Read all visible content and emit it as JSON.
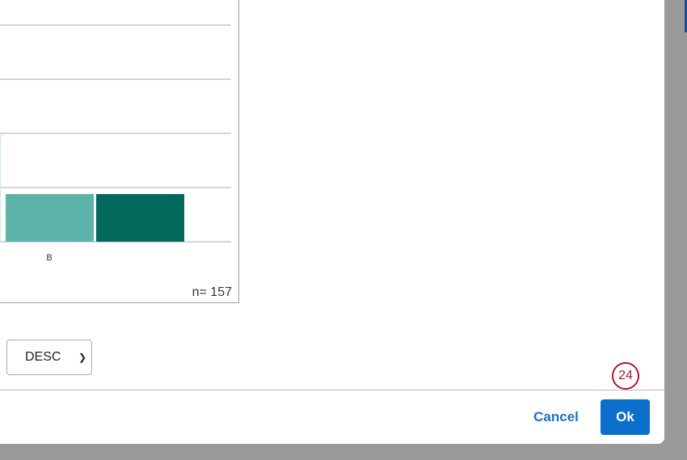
{
  "chart_data": {
    "type": "bar",
    "categories": [
      "B"
    ],
    "series": [
      {
        "values": [
          2.0
        ],
        "color": "#c8ebe3"
      },
      {
        "values": [
          0.88
        ],
        "color": "#5bb3a9"
      },
      {
        "values": [
          0.88
        ],
        "color": "#03695d"
      }
    ],
    "ylim": [
      0,
      4
    ],
    "grid": true,
    "sample_size_label": "n= 157"
  },
  "sort": {
    "selected": "DESC"
  },
  "footer": {
    "cancel_label": "Cancel",
    "ok_label": "Ok"
  },
  "step_badge": "24",
  "colors": {
    "primary": "#0b6fce",
    "badge": "#b0182a"
  }
}
